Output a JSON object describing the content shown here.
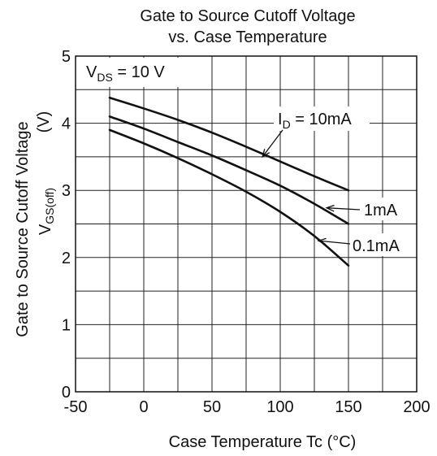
{
  "chart_data": {
    "type": "line",
    "title_line1": "Gate to Source Cutoff Voltage",
    "title_line2": "vs. Case Temperature",
    "xlabel": "Case Temperature    Tc  (°C)",
    "ylabel_main": "Gate to Source Cutoff Voltage",
    "ylabel_unit": "(V)",
    "ylabel_symbol": "V",
    "ylabel_symbol_sub": "GS(off)",
    "xlim": [
      -50,
      200
    ],
    "ylim": [
      0,
      5
    ],
    "x_ticks": [
      "-50",
      "0",
      "50",
      "100",
      "150",
      "200"
    ],
    "y_ticks": [
      "0",
      "1",
      "2",
      "3",
      "4",
      "5"
    ],
    "x_grid_step": 25,
    "y_grid_step": 0.5,
    "condition": {
      "prefix": "V",
      "sub": "DS",
      "suffix": " = 10 V"
    },
    "series": [
      {
        "name": "10mA",
        "label_prefix": "I",
        "label_sub": "D",
        "label_suffix": " = 10mA",
        "x": [
          -25,
          0,
          25,
          50,
          75,
          100,
          125,
          150
        ],
        "y": [
          4.38,
          4.22,
          4.05,
          3.86,
          3.65,
          3.43,
          3.21,
          3.0
        ]
      },
      {
        "name": "1mA",
        "label": "1mA",
        "x": [
          -25,
          0,
          25,
          50,
          75,
          100,
          125,
          150
        ],
        "y": [
          4.1,
          3.92,
          3.72,
          3.52,
          3.3,
          3.07,
          2.8,
          2.5
        ]
      },
      {
        "name": "0.1mA",
        "label": "0.1mA",
        "x": [
          -25,
          0,
          25,
          50,
          75,
          100,
          125,
          150
        ],
        "y": [
          3.9,
          3.7,
          3.48,
          3.24,
          2.98,
          2.68,
          2.32,
          1.88
        ]
      }
    ],
    "grid": true,
    "legend": "none"
  }
}
